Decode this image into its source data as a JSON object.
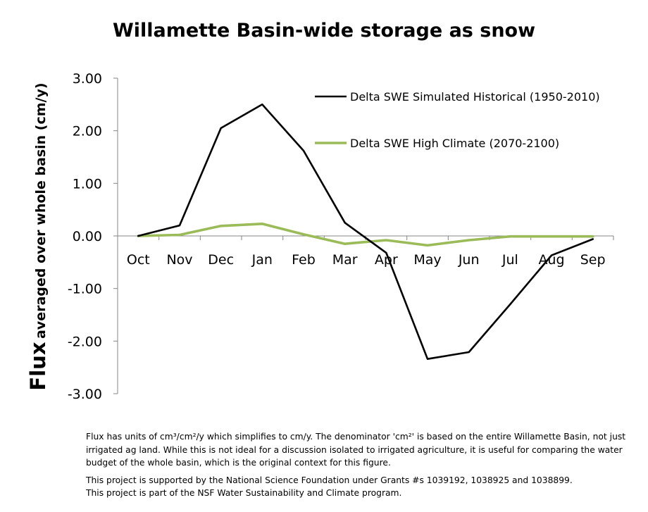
{
  "chart_data": {
    "type": "line",
    "title": "Willamette Basin-wide storage as snow",
    "ylabel_main": "Flux",
    "ylabel_sub": "averaged over whole basin (cm/y)",
    "categories": [
      "Oct",
      "Nov",
      "Dec",
      "Jan",
      "Feb",
      "Mar",
      "Apr",
      "May",
      "Jun",
      "Jul",
      "Aug",
      "Sep"
    ],
    "ylim": [
      -3,
      3
    ],
    "yticks": [
      "3.00",
      "2.00",
      "1.00",
      "0.00",
      "-1.00",
      "-2.00",
      "-3.00"
    ],
    "grid": false,
    "legend_position": "top-right",
    "series": [
      {
        "name": "Delta SWE Simulated Historical (1950-2010)",
        "color": "#000000",
        "values": [
          0.0,
          0.2,
          2.05,
          2.5,
          1.62,
          0.25,
          -0.32,
          -2.34,
          -2.21,
          -1.3,
          -0.37,
          -0.06
        ]
      },
      {
        "name": "Delta SWE High Climate (2070-2100)",
        "color": "#9BBB59",
        "values": [
          0.0,
          0.02,
          0.19,
          0.23,
          0.03,
          -0.15,
          -0.08,
          -0.18,
          -0.08,
          -0.01,
          -0.01,
          -0.01
        ]
      }
    ]
  },
  "notes": {
    "flux_note": "Flux has units of cm³/cm²/y which simplifies to cm/y.  The denominator 'cm²' is based on the entire Willamette Basin, not just irrigated ag land.  While this is not ideal for a discussion isolated to irrigated agriculture, it is useful for comparing the water budget of the whole basin, which is the original context for this figure.",
    "support_line1": "This project is supported by the National Science Foundation under Grants #s 1039192, 1038925 and 1038899.",
    "support_line2": "This project is part of the NSF Water Sustainability and Climate program."
  }
}
